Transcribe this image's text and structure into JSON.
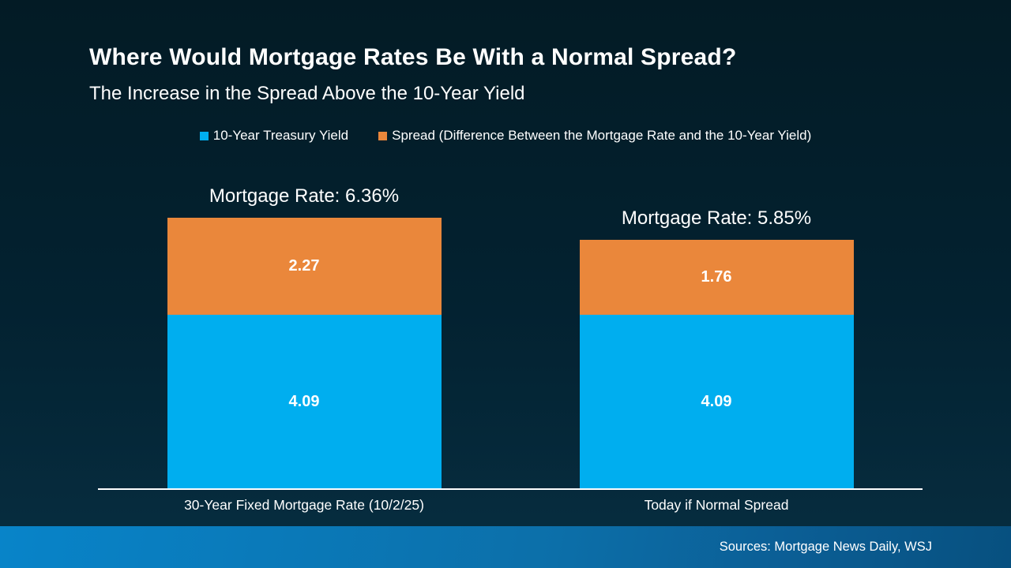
{
  "slide": {
    "title": "Where Would Mortgage Rates Be With a Normal Spread?",
    "subtitle": "The Increase in the Spread Above the 10-Year Yield",
    "footer_source": "Sources: Mortgage News Daily, WSJ"
  },
  "legend": {
    "items": [
      {
        "label": "10-Year Treasury Yield",
        "color": "#00AEEF"
      },
      {
        "label": "Spread (Difference Between the Mortgage Rate and the 10-Year Yield)",
        "color": "#EA873B"
      }
    ]
  },
  "chart_data": {
    "type": "bar",
    "stacked": true,
    "title": "Where Would Mortgage Rates Be With a Normal Spread?",
    "subtitle": "The Increase in the Spread Above the 10-Year Yield",
    "categories": [
      "30-Year Fixed Mortgage Rate (10/2/25)",
      "Today if Normal Spread"
    ],
    "series": [
      {
        "name": "10-Year Treasury Yield",
        "color": "#00AEEF",
        "values": [
          4.09,
          4.09
        ]
      },
      {
        "name": "Spread (Difference Between the Mortgage Rate and the 10-Year Yield)",
        "color": "#EA873B",
        "values": [
          2.27,
          1.76
        ]
      }
    ],
    "totals": [
      6.36,
      5.85
    ],
    "totals_labels": [
      "Mortgage Rate: 6.36%",
      "Mortgage Rate: 5.85%"
    ],
    "ylim": [
      0,
      7
    ],
    "grid": false,
    "legend_position": "top"
  },
  "colors": {
    "background_top": "#031B25",
    "background_bottom": "#072E41",
    "bar_blue": "#00AEEF",
    "bar_orange": "#EA873B",
    "axis_line": "#FFFFFF",
    "footer_left": "#0884C9",
    "footer_right": "#07507F"
  }
}
